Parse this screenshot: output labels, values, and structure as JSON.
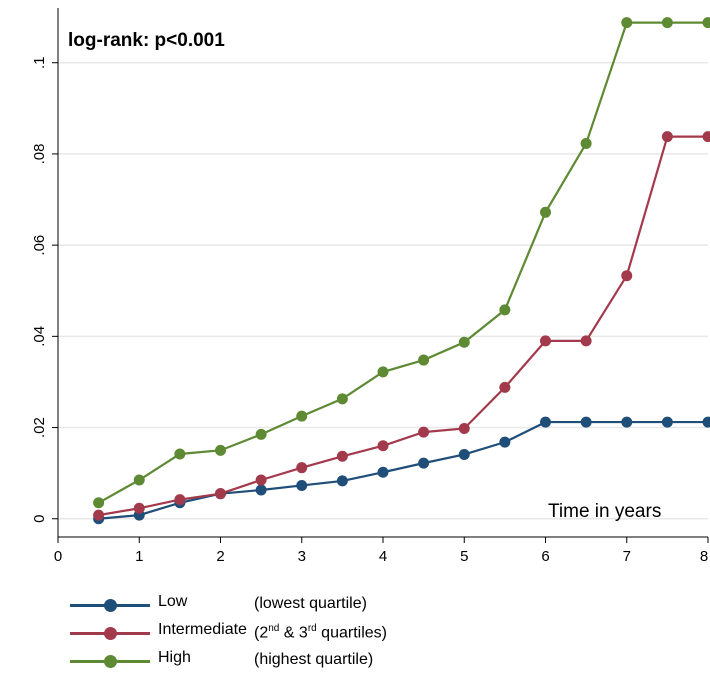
{
  "chart_data": {
    "type": "line",
    "annotation": "log-rank: p<0.001",
    "xlabel": "Time in years",
    "ylabel": "",
    "xlim": [
      0,
      8
    ],
    "ylim": [
      -0.004,
      0.112
    ],
    "xticks": [
      0,
      1,
      2,
      3,
      4,
      5,
      6,
      7,
      8
    ],
    "xtick_labels": [
      "0",
      "1",
      "2",
      "3",
      "4",
      "5",
      "6",
      "7",
      "8"
    ],
    "yticks": [
      0,
      0.02,
      0.04,
      0.06,
      0.08,
      0.1
    ],
    "ytick_labels": [
      "0",
      ".02",
      ".04",
      ".06",
      ".08",
      ".1"
    ],
    "grid": "horizontal",
    "legend_position": "bottom-left",
    "x": [
      0.5,
      1,
      1.5,
      2,
      2.5,
      3,
      3.5,
      4,
      4.5,
      5,
      5.5,
      6,
      6.5,
      7,
      7.5,
      8
    ],
    "series": [
      {
        "name": "Low",
        "description": "(lowest quartile)",
        "color": "#1f4e79",
        "values": [
          0,
          0.0008,
          0.0035,
          0.0055,
          0.0063,
          0.0073,
          0.0083,
          0.0102,
          0.0122,
          0.0141,
          0.0168,
          0.0212,
          0.0212,
          0.0212,
          0.0212,
          0.0212
        ]
      },
      {
        "name": "Intermediate",
        "description": "(2nd & 3rd quartiles)",
        "color": "#a33a4c",
        "values": [
          0.0008,
          0.0023,
          0.0042,
          0.0055,
          0.0085,
          0.0112,
          0.0137,
          0.016,
          0.019,
          0.0198,
          0.0288,
          0.039,
          0.039,
          0.0533,
          0.0838,
          0.0838
        ]
      },
      {
        "name": "High",
        "description": "(highest quartile)",
        "color": "#5e8a34",
        "values": [
          0.0035,
          0.0085,
          0.0142,
          0.015,
          0.0185,
          0.0225,
          0.0263,
          0.0322,
          0.0348,
          0.0387,
          0.0458,
          0.0672,
          0.0823,
          0.1088,
          0.1088,
          0.1088
        ]
      }
    ]
  }
}
